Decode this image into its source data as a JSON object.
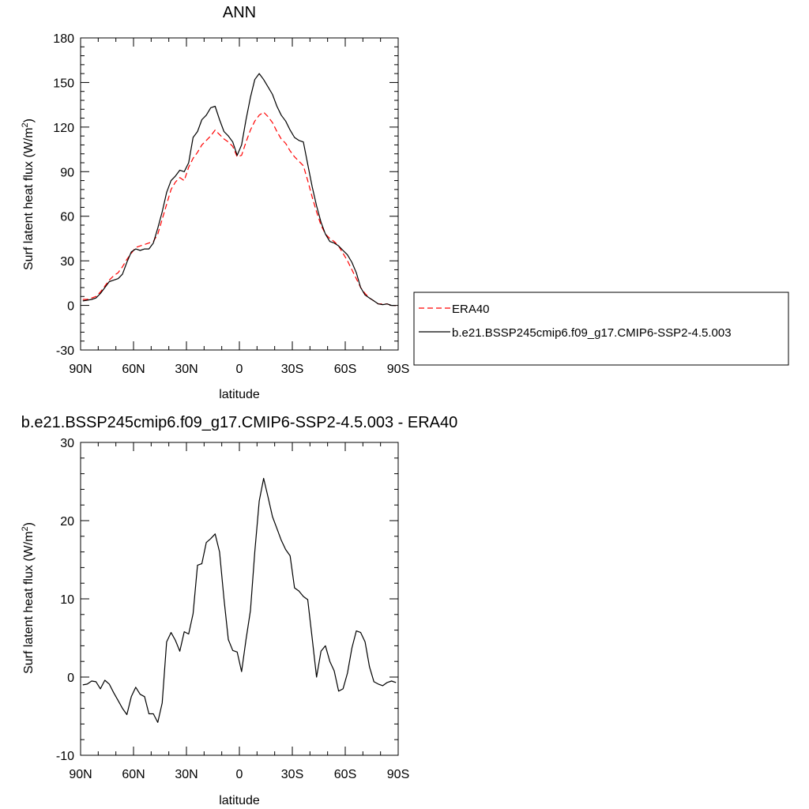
{
  "figure": {
    "background": "#ffffff"
  },
  "chart_data": [
    {
      "type": "line",
      "title": "ANN",
      "xlabel": "latitude",
      "ylabel": "Surf latent heat flux (W/m",
      "ylabel_sup": "2",
      "ylabel_end": ")",
      "xlim": [
        90,
        -90
      ],
      "ylim": [
        -30,
        180
      ],
      "xticks": [
        90,
        60,
        30,
        0,
        -30,
        -60,
        -90
      ],
      "xtick_labels": [
        "90N",
        "60N",
        "30N",
        "0",
        "30S",
        "60S",
        "90S"
      ],
      "yticks": [
        -30,
        0,
        30,
        60,
        90,
        120,
        150,
        180
      ],
      "ytick_labels": [
        "-30",
        "0",
        "30",
        "60",
        "90",
        "120",
        "150",
        "180"
      ],
      "legend_position": "right, outside plot",
      "series": [
        {
          "name": "ERA40",
          "color": "#ff0000",
          "dash": true,
          "x": [
            88.75,
            86.25,
            83.75,
            81.25,
            78.75,
            76.25,
            73.75,
            71.25,
            68.75,
            66.25,
            63.75,
            61.25,
            58.75,
            56.25,
            53.75,
            51.25,
            48.75,
            46.25,
            43.75,
            41.25,
            38.75,
            36.25,
            33.75,
            31.25,
            28.75,
            26.25,
            23.75,
            21.25,
            18.75,
            16.25,
            13.75,
            11.25,
            8.75,
            6.25,
            3.75,
            1.25,
            -1.25,
            -3.75,
            -6.25,
            -8.75,
            -11.25,
            -13.75,
            -16.25,
            -18.75,
            -21.25,
            -23.75,
            -26.25,
            -28.75,
            -31.25,
            -33.75,
            -36.25,
            -38.75,
            -41.25,
            -43.75,
            -46.25,
            -48.75,
            -51.25,
            -53.75,
            -56.25,
            -58.75,
            -61.25,
            -63.75,
            -66.25,
            -68.75,
            -71.25,
            -73.75,
            -76.25,
            -78.75,
            -81.25,
            -83.75,
            -86.25,
            -88.75
          ],
          "values": [
            4,
            4,
            5,
            6,
            9,
            13,
            17,
            20,
            22,
            26,
            31,
            35,
            39,
            40,
            41,
            42,
            43,
            48,
            58,
            68,
            78,
            83,
            86,
            84,
            93,
            99,
            103,
            108,
            111,
            114,
            118,
            115,
            112,
            110,
            107,
            100,
            101,
            110,
            118,
            124,
            128,
            130,
            127,
            123,
            117,
            112,
            109,
            104,
            100,
            97,
            94,
            84,
            73,
            63,
            54,
            48,
            45,
            43,
            40,
            35,
            30,
            24,
            18,
            12,
            8,
            5,
            3,
            1,
            1,
            1,
            0,
            0
          ]
        },
        {
          "name": "b.e21.BSSP245cmip6.f09_g17.CMIP6-SSP2-4.5.003",
          "color": "#000000",
          "dash": false,
          "x": [
            88.75,
            86.25,
            83.75,
            81.25,
            78.75,
            76.25,
            73.75,
            71.25,
            68.75,
            66.25,
            63.75,
            61.25,
            58.75,
            56.25,
            53.75,
            51.25,
            48.75,
            46.25,
            43.75,
            41.25,
            38.75,
            36.25,
            33.75,
            31.25,
            28.75,
            26.25,
            23.75,
            21.25,
            18.75,
            16.25,
            13.75,
            11.25,
            8.75,
            6.25,
            3.75,
            1.25,
            -1.25,
            -3.75,
            -6.25,
            -8.75,
            -11.25,
            -13.75,
            -16.25,
            -18.75,
            -21.25,
            -23.75,
            -26.25,
            -28.75,
            -31.25,
            -33.75,
            -36.25,
            -38.75,
            -41.25,
            -43.75,
            -46.25,
            -48.75,
            -51.25,
            -53.75,
            -56.25,
            -58.75,
            -61.25,
            -63.75,
            -66.25,
            -68.75,
            -71.25,
            -73.75,
            -76.25,
            -78.75,
            -81.25,
            -83.75,
            -86.25,
            -88.75
          ],
          "values": [
            3,
            3.5,
            4,
            5,
            8,
            12,
            16,
            17,
            18,
            21,
            29,
            36,
            38,
            37,
            38,
            38,
            42,
            52,
            63,
            76,
            84,
            87,
            91,
            90,
            96,
            113,
            117,
            125,
            128,
            133,
            134,
            125,
            117,
            114,
            110,
            101,
            108,
            125,
            140,
            152,
            156,
            152,
            147,
            142,
            134,
            128,
            124,
            118,
            113,
            111,
            110,
            95,
            80,
            67,
            56,
            48,
            43,
            42,
            40,
            37,
            34,
            29,
            22,
            12,
            7,
            5,
            3,
            1,
            0.5,
            1,
            0,
            0
          ]
        }
      ]
    },
    {
      "type": "line",
      "title": "b.e21.BSSP245cmip6.f09_g17.CMIP6-SSP2-4.5.003 - ERA40",
      "xlabel": "latitude",
      "ylabel": "Surf latent heat flux (W/m",
      "ylabel_sup": "2",
      "ylabel_end": ")",
      "xlim": [
        90,
        -90
      ],
      "ylim": [
        -10,
        30
      ],
      "xticks": [
        90,
        60,
        30,
        0,
        -30,
        -60,
        -90
      ],
      "xtick_labels": [
        "90N",
        "60N",
        "30N",
        "0",
        "30S",
        "60S",
        "90S"
      ],
      "yticks": [
        -10,
        0,
        10,
        20,
        30
      ],
      "ytick_labels": [
        "-10",
        "0",
        "10",
        "20",
        "30"
      ],
      "series": [
        {
          "color": "#000000",
          "dash": false,
          "x": [
            88.75,
            86.25,
            83.75,
            81.25,
            78.75,
            76.25,
            73.75,
            71.25,
            68.75,
            66.25,
            63.75,
            61.25,
            58.75,
            56.25,
            53.75,
            51.25,
            48.75,
            46.25,
            43.75,
            41.25,
            38.75,
            36.25,
            33.75,
            31.25,
            28.75,
            26.25,
            23.75,
            21.25,
            18.75,
            16.25,
            13.75,
            11.25,
            8.75,
            6.25,
            3.75,
            1.25,
            -1.25,
            -3.75,
            -6.25,
            -8.75,
            -11.25,
            -13.75,
            -16.25,
            -18.75,
            -21.25,
            -23.75,
            -26.25,
            -28.75,
            -31.25,
            -33.75,
            -36.25,
            -38.75,
            -41.25,
            -43.75,
            -46.25,
            -48.75,
            -51.25,
            -53.75,
            -56.25,
            -58.75,
            -61.25,
            -63.75,
            -66.25,
            -68.75,
            -71.25,
            -73.75,
            -76.25,
            -78.75,
            -81.25,
            -83.75,
            -86.25,
            -88.75
          ],
          "values": [
            -1,
            -0.9,
            -0.5,
            -0.6,
            -1.5,
            -0.4,
            -0.9,
            -2,
            -3,
            -4,
            -4.8,
            -2.5,
            -1.3,
            -2.2,
            -2.5,
            -4.7,
            -4.7,
            -5.8,
            -3.3,
            4.5,
            5.7,
            4.7,
            3.3,
            5.8,
            5.5,
            8.1,
            14.3,
            14.5,
            17.2,
            17.7,
            18.3,
            16,
            10,
            4.8,
            3.4,
            3.2,
            0.7,
            4.8,
            8.5,
            16,
            22.5,
            25.4,
            23,
            20.5,
            19,
            17.5,
            16.3,
            15.5,
            11.4,
            11,
            10.3,
            9.9,
            5,
            0,
            3.3,
            4,
            2,
            0.8,
            -1.8,
            -1.5,
            0.5,
            3.7,
            5.9,
            5.7,
            4.5,
            1.3,
            -0.6,
            -0.9,
            -1.1,
            -0.7,
            -0.5,
            -0.7
          ]
        }
      ]
    }
  ]
}
